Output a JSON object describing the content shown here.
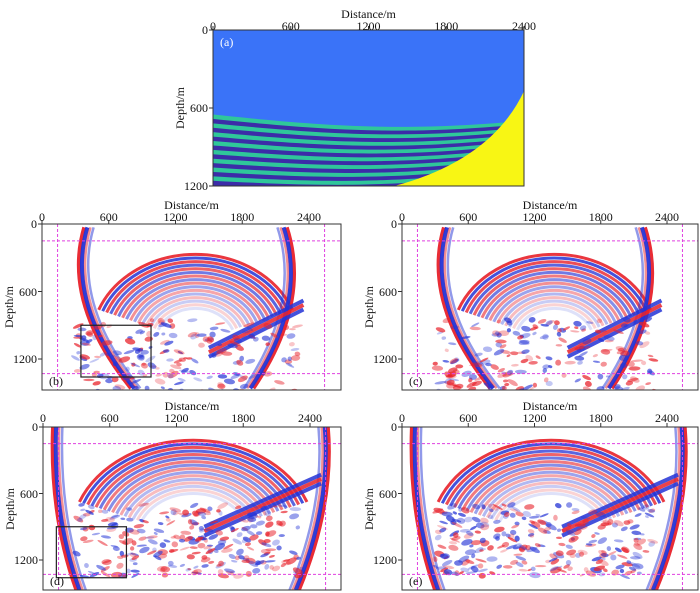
{
  "figure": {
    "colors": {
      "model_water": "#3a73f8",
      "model_layer_light": "#2fc79a",
      "model_layer_dark": "#3c2ca8",
      "model_salt": "#f8f614",
      "positive": "#e8212a",
      "negative": "#2333d6",
      "dashed_boundary": "#e040e0",
      "zoom_box": "#222222"
    },
    "panels": [
      {
        "id": "a",
        "label": "(a)",
        "type": "velocity-model",
        "xlabel": "Distance/m",
        "ylabel": "Depth/m",
        "xticks": [
          "0",
          "600",
          "1200",
          "1800",
          "2400"
        ],
        "yticks": [
          "0",
          "600",
          "1200"
        ]
      },
      {
        "id": "b",
        "label": "(b)",
        "type": "wavefield",
        "xlabel": "Distance/m",
        "ylabel": "Depth/m",
        "xticks": [
          "0",
          "600",
          "1200",
          "1800",
          "2400"
        ],
        "yticks": [
          "0",
          "600",
          "1200"
        ],
        "zoom_box": true
      },
      {
        "id": "c",
        "label": "(c)",
        "type": "wavefield",
        "xlabel": "Distance/m",
        "ylabel": "Depth/m",
        "xticks": [
          "0",
          "600",
          "1200",
          "1800",
          "2400"
        ],
        "yticks": [
          "0",
          "600",
          "1200"
        ],
        "zoom_box": false
      },
      {
        "id": "d",
        "label": "(d)",
        "type": "wavefield",
        "xlabel": "Distance/m",
        "ylabel": "Depth/m",
        "xticks": [
          "0",
          "600",
          "1200",
          "1800",
          "2400"
        ],
        "yticks": [
          "0",
          "600",
          "1200"
        ],
        "zoom_box": true
      },
      {
        "id": "e",
        "label": "(e)",
        "type": "wavefield",
        "xlabel": "Distance/m",
        "ylabel": "Depth/m",
        "xticks": [
          "0",
          "600",
          "1200",
          "1800",
          "2400"
        ],
        "yticks": [
          "0",
          "600",
          "1200"
        ],
        "zoom_box": false
      }
    ]
  }
}
